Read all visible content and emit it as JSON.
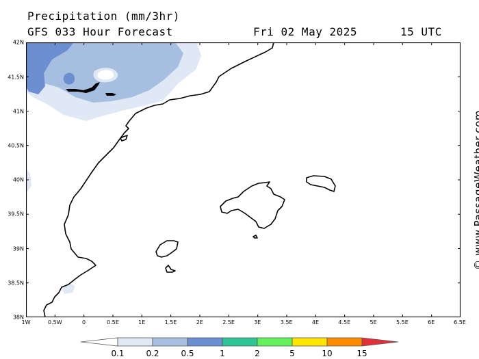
{
  "header": {
    "title": "Precipitation (mm/3hr)",
    "subtitle": "GFS 033 Hour Forecast",
    "valid_date": "Fri 02 May 2025",
    "valid_time": "15 UTC"
  },
  "credit": "© www.PassageWeather.com",
  "map": {
    "lon_range": [
      -1,
      6.5
    ],
    "lat_range": [
      38,
      42
    ],
    "x_ticks": [
      "1W",
      "0.5W",
      "0",
      "0.5E",
      "1E",
      "1.5E",
      "2E",
      "2.5E",
      "3E",
      "3.5E",
      "4E",
      "4.5E",
      "5E",
      "5.5E",
      "6E",
      "6.5E"
    ],
    "y_ticks": [
      "42N",
      "41.5N",
      "41N",
      "40.5N",
      "40N",
      "39.5N",
      "39N",
      "38.5N",
      "38N"
    ],
    "coast_color": "#000000",
    "precip_levels": {
      "0.1-0.2": "#e0e8f5",
      "0.2-0.5": "#a6bfe0",
      "0.5-1": "#6b8fd0"
    }
  },
  "colorbar": {
    "labels": [
      "0.1",
      "0.2",
      "0.5",
      "1",
      "2",
      "5",
      "10",
      "15"
    ],
    "colors": [
      "#ffffff",
      "#e1e9f5",
      "#a9bfe2",
      "#6b90d1",
      "#2fc493",
      "#62f25c",
      "#ffe600",
      "#ff8c00",
      "#e0303a"
    ]
  }
}
